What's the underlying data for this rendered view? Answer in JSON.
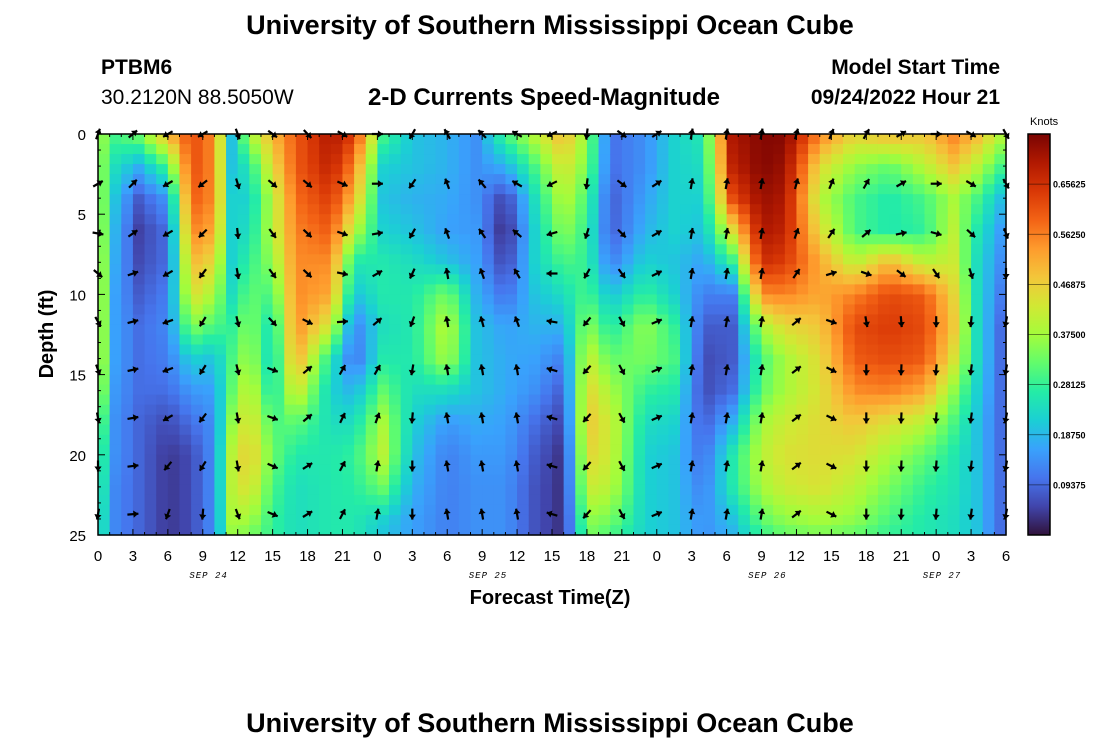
{
  "header": {
    "title": "University of Southern Mississippi Ocean Cube",
    "station_id": "PTBM6",
    "station_coords": "30.2120N  88.5050W",
    "subtitle": "2-D Currents Speed-Magnitude",
    "model_start_label": "Model Start Time",
    "model_start_value": "09/24/2022 Hour 21"
  },
  "footer": {
    "title": "University of Southern Mississippi Ocean Cube"
  },
  "chart_data": {
    "type": "heatmap",
    "title": "2-D Currents Speed-Magnitude",
    "xlabel": "Forecast Time(Z)",
    "ylabel": "Depth (ft)",
    "x_hours_range": [
      0,
      78
    ],
    "y_range": [
      0,
      25
    ],
    "y_ticks": [
      0,
      5,
      10,
      15,
      20,
      25
    ],
    "x_tick_labels": [
      "0",
      "3",
      "6",
      "9",
      "12",
      "15",
      "18",
      "21",
      "0",
      "3",
      "6",
      "9",
      "12",
      "15",
      "18",
      "21",
      "0",
      "3",
      "6",
      "9",
      "12",
      "15",
      "18",
      "21",
      "0",
      "3",
      "6"
    ],
    "date_labels": [
      {
        "text": "SEP 24",
        "hour": 9.5
      },
      {
        "text": "SEP 25",
        "hour": 33.5
      },
      {
        "text": "SEP 26",
        "hour": 57.5
      },
      {
        "text": "SEP 27",
        "hour": 72.5
      }
    ],
    "colorbar": {
      "label": "Knots",
      "range": [
        0,
        0.75
      ],
      "ticks": [
        "0.65625",
        "0.56250",
        "0.46875",
        "0.37500",
        "0.28125",
        "0.18750",
        "0.09375"
      ]
    },
    "colors": {
      "scale": [
        "#30123b",
        "#4145ab",
        "#4675ed",
        "#39a2fc",
        "#1bcfd4",
        "#24eca6",
        "#61fc6c",
        "#a4fc3b",
        "#d1e834",
        "#f3c63a",
        "#fe9b2d",
        "#f36315",
        "#d93806",
        "#b11901",
        "#7a0402"
      ]
    },
    "speed_keyframes_hour": [
      0,
      1.5,
      3.5,
      6,
      8,
      10,
      11.5,
      13,
      15,
      17,
      20,
      22,
      24.5,
      27,
      30,
      32.5,
      35,
      37.5,
      40,
      42,
      44,
      47,
      49.5,
      52,
      54.5,
      57,
      59,
      62,
      65,
      68,
      71,
      73.5,
      75.5,
      77.5
    ],
    "speed_keyframe_depths_ft": [
      0,
      2,
      4,
      6,
      8,
      10,
      12,
      14,
      16,
      18,
      20,
      22,
      24,
      25
    ],
    "speed_knots_keyframes": [
      [
        0.38,
        0.38,
        0.4,
        0.42,
        0.44,
        0.45,
        0.45,
        0.45,
        0.42,
        0.36,
        0.32,
        0.3,
        0.28,
        0.28
      ],
      [
        0.3,
        0.24,
        0.2,
        0.18,
        0.17,
        0.16,
        0.16,
        0.16,
        0.15,
        0.14,
        0.14,
        0.13,
        0.13,
        0.13
      ],
      [
        0.34,
        0.18,
        0.08,
        0.05,
        0.06,
        0.08,
        0.1,
        0.1,
        0.1,
        0.09,
        0.09,
        0.09,
        0.09,
        0.09
      ],
      [
        0.5,
        0.3,
        0.15,
        0.1,
        0.1,
        0.12,
        0.13,
        0.12,
        0.1,
        0.06,
        0.04,
        0.04,
        0.04,
        0.04
      ],
      [
        0.62,
        0.62,
        0.6,
        0.56,
        0.5,
        0.45,
        0.35,
        0.22,
        0.15,
        0.1,
        0.06,
        0.06,
        0.06,
        0.06
      ],
      [
        0.55,
        0.55,
        0.55,
        0.52,
        0.45,
        0.38,
        0.3,
        0.2,
        0.16,
        0.14,
        0.14,
        0.14,
        0.14,
        0.14
      ],
      [
        0.2,
        0.2,
        0.22,
        0.22,
        0.22,
        0.24,
        0.28,
        0.3,
        0.32,
        0.36,
        0.4,
        0.4,
        0.38,
        0.36
      ],
      [
        0.38,
        0.26,
        0.22,
        0.24,
        0.28,
        0.32,
        0.35,
        0.38,
        0.42,
        0.45,
        0.48,
        0.45,
        0.38,
        0.34
      ],
      [
        0.5,
        0.45,
        0.4,
        0.4,
        0.36,
        0.3,
        0.24,
        0.22,
        0.24,
        0.3,
        0.33,
        0.3,
        0.28,
        0.28
      ],
      [
        0.6,
        0.6,
        0.58,
        0.56,
        0.55,
        0.55,
        0.55,
        0.52,
        0.44,
        0.32,
        0.26,
        0.24,
        0.24,
        0.24
      ],
      [
        0.7,
        0.68,
        0.64,
        0.6,
        0.55,
        0.52,
        0.42,
        0.26,
        0.22,
        0.24,
        0.26,
        0.26,
        0.26,
        0.26
      ],
      [
        0.64,
        0.56,
        0.5,
        0.4,
        0.26,
        0.2,
        0.12,
        0.1,
        0.18,
        0.24,
        0.28,
        0.27,
        0.26,
        0.26
      ],
      [
        0.3,
        0.22,
        0.2,
        0.22,
        0.26,
        0.26,
        0.24,
        0.26,
        0.32,
        0.38,
        0.4,
        0.33,
        0.22,
        0.2
      ],
      [
        0.2,
        0.2,
        0.18,
        0.2,
        0.24,
        0.26,
        0.26,
        0.26,
        0.24,
        0.22,
        0.2,
        0.18,
        0.16,
        0.16
      ],
      [
        0.18,
        0.18,
        0.17,
        0.16,
        0.2,
        0.34,
        0.4,
        0.38,
        0.24,
        0.15,
        0.12,
        0.12,
        0.12,
        0.12
      ],
      [
        0.14,
        0.14,
        0.14,
        0.15,
        0.16,
        0.18,
        0.2,
        0.2,
        0.2,
        0.17,
        0.15,
        0.14,
        0.14,
        0.14
      ],
      [
        0.3,
        0.18,
        0.05,
        0.02,
        0.05,
        0.1,
        0.16,
        0.17,
        0.17,
        0.16,
        0.15,
        0.14,
        0.14,
        0.14
      ],
      [
        0.4,
        0.3,
        0.24,
        0.22,
        0.22,
        0.2,
        0.18,
        0.16,
        0.14,
        0.1,
        0.08,
        0.07,
        0.07,
        0.07
      ],
      [
        0.5,
        0.44,
        0.4,
        0.36,
        0.3,
        0.24,
        0.18,
        0.12,
        0.08,
        0.05,
        0.03,
        0.03,
        0.03,
        0.03
      ],
      [
        0.36,
        0.34,
        0.3,
        0.28,
        0.28,
        0.3,
        0.36,
        0.42,
        0.46,
        0.48,
        0.46,
        0.42,
        0.36,
        0.34
      ],
      [
        0.1,
        0.1,
        0.08,
        0.08,
        0.12,
        0.2,
        0.26,
        0.32,
        0.38,
        0.42,
        0.42,
        0.4,
        0.34,
        0.3
      ],
      [
        0.14,
        0.14,
        0.16,
        0.18,
        0.22,
        0.28,
        0.36,
        0.34,
        0.28,
        0.24,
        0.22,
        0.22,
        0.22,
        0.22
      ],
      [
        0.22,
        0.22,
        0.22,
        0.22,
        0.2,
        0.22,
        0.28,
        0.3,
        0.26,
        0.22,
        0.2,
        0.2,
        0.2,
        0.2
      ],
      [
        0.26,
        0.24,
        0.22,
        0.2,
        0.16,
        0.12,
        0.08,
        0.06,
        0.06,
        0.08,
        0.1,
        0.12,
        0.14,
        0.14
      ],
      [
        0.7,
        0.68,
        0.62,
        0.45,
        0.28,
        0.12,
        0.08,
        0.08,
        0.1,
        0.18,
        0.26,
        0.26,
        0.2,
        0.18
      ],
      [
        0.74,
        0.74,
        0.72,
        0.7,
        0.66,
        0.55,
        0.38,
        0.3,
        0.32,
        0.38,
        0.4,
        0.38,
        0.32,
        0.28
      ],
      [
        0.74,
        0.72,
        0.7,
        0.68,
        0.64,
        0.56,
        0.45,
        0.38,
        0.38,
        0.42,
        0.44,
        0.42,
        0.36,
        0.32
      ],
      [
        0.56,
        0.45,
        0.4,
        0.45,
        0.52,
        0.52,
        0.48,
        0.45,
        0.44,
        0.45,
        0.45,
        0.44,
        0.38,
        0.34
      ],
      [
        0.46,
        0.36,
        0.3,
        0.3,
        0.4,
        0.56,
        0.62,
        0.6,
        0.55,
        0.48,
        0.44,
        0.4,
        0.36,
        0.32
      ],
      [
        0.5,
        0.32,
        0.26,
        0.26,
        0.5,
        0.62,
        0.64,
        0.62,
        0.56,
        0.44,
        0.38,
        0.34,
        0.3,
        0.28
      ],
      [
        0.48,
        0.4,
        0.3,
        0.28,
        0.4,
        0.6,
        0.62,
        0.6,
        0.52,
        0.4,
        0.32,
        0.28,
        0.26,
        0.26
      ],
      [
        0.56,
        0.48,
        0.38,
        0.4,
        0.42,
        0.46,
        0.48,
        0.44,
        0.36,
        0.3,
        0.26,
        0.25,
        0.24,
        0.24
      ],
      [
        0.5,
        0.4,
        0.3,
        0.26,
        0.24,
        0.24,
        0.24,
        0.24,
        0.22,
        0.2,
        0.2,
        0.2,
        0.2,
        0.2
      ],
      [
        0.4,
        0.3,
        0.2,
        0.16,
        0.14,
        0.12,
        0.1,
        0.1,
        0.1,
        0.1,
        0.1,
        0.1,
        0.1,
        0.1
      ]
    ],
    "vector_hours": [
      0,
      3,
      6,
      9,
      12,
      15,
      18,
      21,
      24,
      27,
      30,
      33,
      36,
      39,
      42,
      45,
      48,
      51,
      54,
      57,
      60,
      63,
      66,
      69,
      72,
      75,
      78
    ],
    "vector_depths_ft": [
      0,
      3.1,
      6.2,
      8.7,
      11.7,
      14.7,
      17.7,
      20.7,
      23.7
    ],
    "vector_direction_deg_keyframes": [
      [
        20,
        60,
        100,
        130,
        150,
        160,
        170,
        180,
        190
      ],
      [
        60,
        40,
        40,
        50,
        50,
        50,
        50,
        50,
        50
      ],
      [
        240,
        240,
        240,
        240,
        250,
        250,
        240,
        220,
        200
      ],
      [
        240,
        230,
        220,
        210,
        200,
        200,
        210,
        210,
        180
      ],
      [
        120,
        130,
        150,
        150,
        150,
        150,
        150,
        150,
        150
      ],
      [
        140,
        130,
        130,
        130,
        110,
        30,
        30,
        40,
        40
      ],
      [
        90,
        90,
        80,
        60,
        50,
        30,
        20,
        10,
        10
      ],
      [
        330,
        340,
        340,
        350,
        350,
        350,
        350,
        350,
        350
      ],
      [
        300,
        300,
        310,
        330,
        340,
        350,
        350,
        350,
        350
      ],
      [
        150,
        150,
        160,
        170,
        180,
        180,
        180,
        180,
        180
      ],
      [
        10,
        10,
        10,
        10,
        10,
        10,
        10,
        10,
        10
      ],
      [
        10,
        10,
        10,
        10,
        10,
        10,
        10,
        10,
        10
      ],
      [
        30,
        30,
        50,
        110,
        170,
        180,
        180,
        180,
        180
      ],
      [
        150,
        150,
        160,
        180,
        190,
        190,
        190,
        190,
        190
      ]
    ],
    "vector_direction_keyframe_hours": [
      0,
      4,
      6,
      10,
      13,
      19,
      24,
      30,
      36,
      44,
      50,
      58,
      66,
      78
    ]
  }
}
